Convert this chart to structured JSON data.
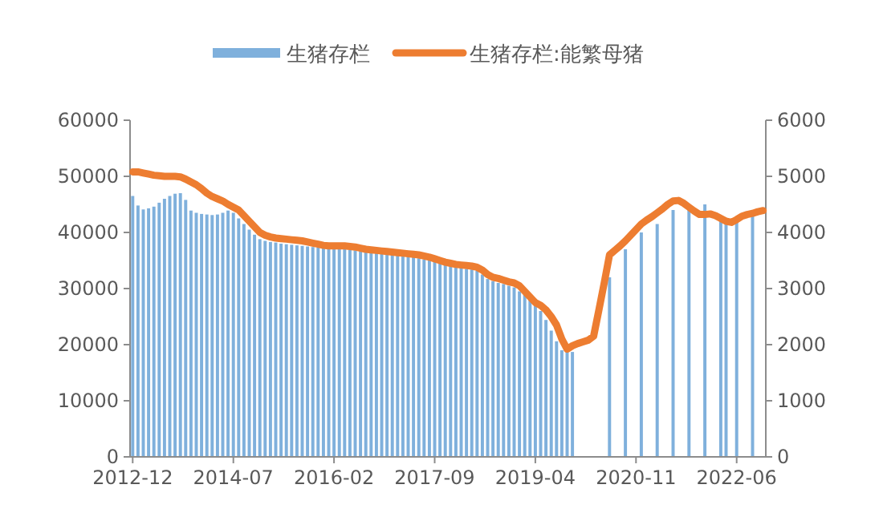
{
  "chart_data": {
    "type": "bar",
    "legend": "top",
    "categories": [
      "2012-12",
      null,
      null,
      null,
      null,
      null,
      null,
      null,
      null,
      null,
      null,
      null,
      null,
      null,
      null,
      null,
      null,
      null,
      null,
      "2014-07",
      null,
      null,
      null,
      null,
      null,
      null,
      null,
      null,
      null,
      null,
      null,
      null,
      null,
      null,
      null,
      null,
      null,
      null,
      "2016-02",
      null,
      null,
      null,
      null,
      null,
      null,
      null,
      null,
      null,
      null,
      null,
      null,
      null,
      null,
      null,
      null,
      null,
      null,
      "2017-09",
      null,
      null,
      null,
      null,
      null,
      null,
      null,
      null,
      null,
      null,
      null,
      null,
      null,
      null,
      null,
      null,
      null,
      null,
      "2019-04",
      null,
      null,
      null,
      null,
      null,
      null,
      null,
      null,
      null,
      null,
      null,
      null,
      null,
      null,
      null,
      null,
      null,
      null,
      "2020-11",
      null,
      null,
      null,
      null,
      null,
      null,
      null,
      null,
      null,
      null,
      null,
      null,
      null,
      null,
      null,
      null,
      null,
      null,
      "2022-06",
      null,
      null,
      null,
      null,
      null
    ],
    "ylim": [
      0,
      60000
    ],
    "yticks": [
      0,
      10000,
      20000,
      30000,
      40000,
      50000,
      60000
    ],
    "y2lim": [
      0,
      6000
    ],
    "y2ticks": [
      0,
      1000,
      2000,
      3000,
      4000,
      5000,
      6000
    ],
    "series": [
      {
        "name": "生猪存栏",
        "color": "#7fb0dc",
        "values": [
          46500,
          44800,
          44100,
          44300,
          44600,
          45300,
          46000,
          46500,
          46900,
          47000,
          45800,
          43900,
          43500,
          43300,
          43200,
          43100,
          43200,
          43500,
          43900,
          43500,
          42500,
          41500,
          40500,
          39600,
          38800,
          38500,
          38300,
          38200,
          38000,
          37900,
          37800,
          37700,
          37600,
          37500,
          37400,
          37300,
          37200,
          37200,
          37100,
          37100,
          37000,
          36900,
          36800,
          36700,
          36600,
          36500,
          36400,
          36300,
          36200,
          36100,
          36000,
          35800,
          35700,
          35600,
          35400,
          35200,
          35000,
          34800,
          34500,
          34300,
          34200,
          34000,
          33800,
          33500,
          33400,
          33200,
          32500,
          31700,
          31300,
          31000,
          30800,
          30500,
          30200,
          29500,
          29200,
          28300,
          27300,
          26000,
          24400,
          22500,
          20600,
          19000,
          18700,
          18700,
          null,
          null,
          null,
          null,
          null,
          null,
          32000,
          null,
          null,
          37000,
          null,
          null,
          40000,
          null,
          null,
          41500,
          null,
          null,
          44000,
          null,
          null,
          44000,
          null,
          null,
          45000,
          null,
          null,
          42000,
          42000,
          null,
          42500,
          null,
          null,
          43000,
          null,
          null
        ]
      },
      {
        "name": "生猪存栏:能繁母猪",
        "type": "line",
        "axis": "y2",
        "color": "#ed7d31",
        "values": [
          5080,
          5080,
          5060,
          5040,
          5020,
          5010,
          5000,
          5000,
          5000,
          4990,
          4950,
          4900,
          4850,
          4780,
          4700,
          4640,
          4600,
          4560,
          4500,
          4450,
          4400,
          4300,
          4200,
          4100,
          4000,
          3950,
          3920,
          3900,
          3890,
          3880,
          3870,
          3860,
          3850,
          3830,
          3810,
          3790,
          3770,
          3760,
          3760,
          3760,
          3760,
          3750,
          3740,
          3720,
          3700,
          3690,
          3680,
          3670,
          3660,
          3650,
          3640,
          3630,
          3620,
          3610,
          3600,
          3580,
          3560,
          3530,
          3500,
          3470,
          3450,
          3430,
          3420,
          3410,
          3400,
          3380,
          3330,
          3250,
          3200,
          3180,
          3150,
          3120,
          3100,
          3050,
          2950,
          2850,
          2750,
          2700,
          2620,
          2500,
          2350,
          2100,
          1920,
          1980,
          2020,
          2050,
          2080,
          2150,
          2620,
          3100,
          3600,
          3680,
          3760,
          3850,
          3950,
          4050,
          4150,
          4220,
          4280,
          4350,
          4420,
          4500,
          4560,
          4570,
          4520,
          4450,
          4380,
          4320,
          4320,
          4330,
          4300,
          4250,
          4200,
          4180,
          4230,
          4290,
          4320,
          4340,
          4370,
          4390
        ]
      }
    ]
  }
}
